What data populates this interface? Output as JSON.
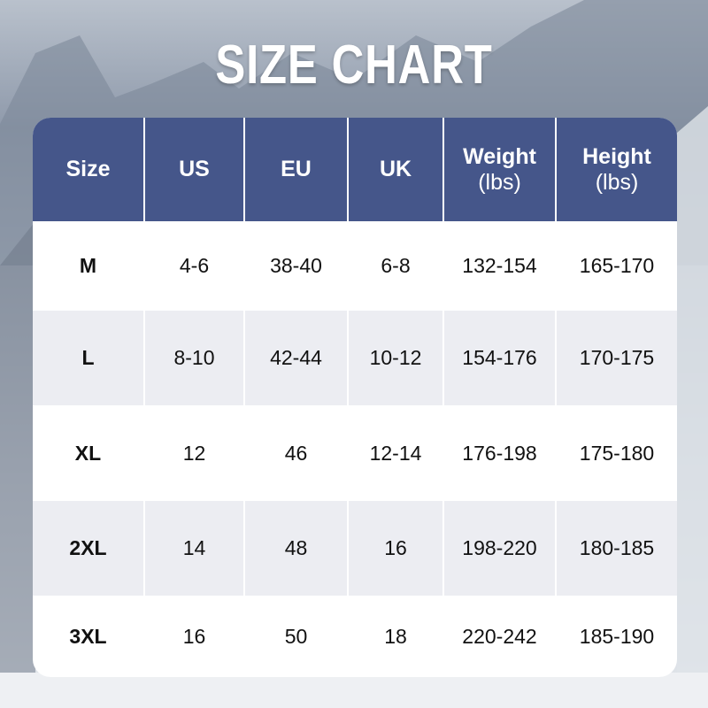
{
  "title": "SIZE CHART",
  "colors": {
    "header": "#45568a",
    "row_alt": "#ecedf2",
    "row": "#ffffff"
  },
  "table": {
    "headers": [
      {
        "label": "Size",
        "unit": ""
      },
      {
        "label": "US",
        "unit": ""
      },
      {
        "label": "EU",
        "unit": ""
      },
      {
        "label": "UK",
        "unit": ""
      },
      {
        "label": "Weight",
        "unit": "(lbs)"
      },
      {
        "label": "Height",
        "unit": "(lbs)"
      }
    ],
    "rows": [
      [
        "M",
        "4-6",
        "38-40",
        "6-8",
        "132-154",
        "165-170"
      ],
      [
        "L",
        "8-10",
        "42-44",
        "10-12",
        "154-176",
        "170-175"
      ],
      [
        "XL",
        "12",
        "46",
        "12-14",
        "176-198",
        "175-180"
      ],
      [
        "2XL",
        "14",
        "48",
        "16",
        "198-220",
        "180-185"
      ],
      [
        "3XL",
        "16",
        "50",
        "18",
        "220-242",
        "185-190"
      ]
    ]
  }
}
